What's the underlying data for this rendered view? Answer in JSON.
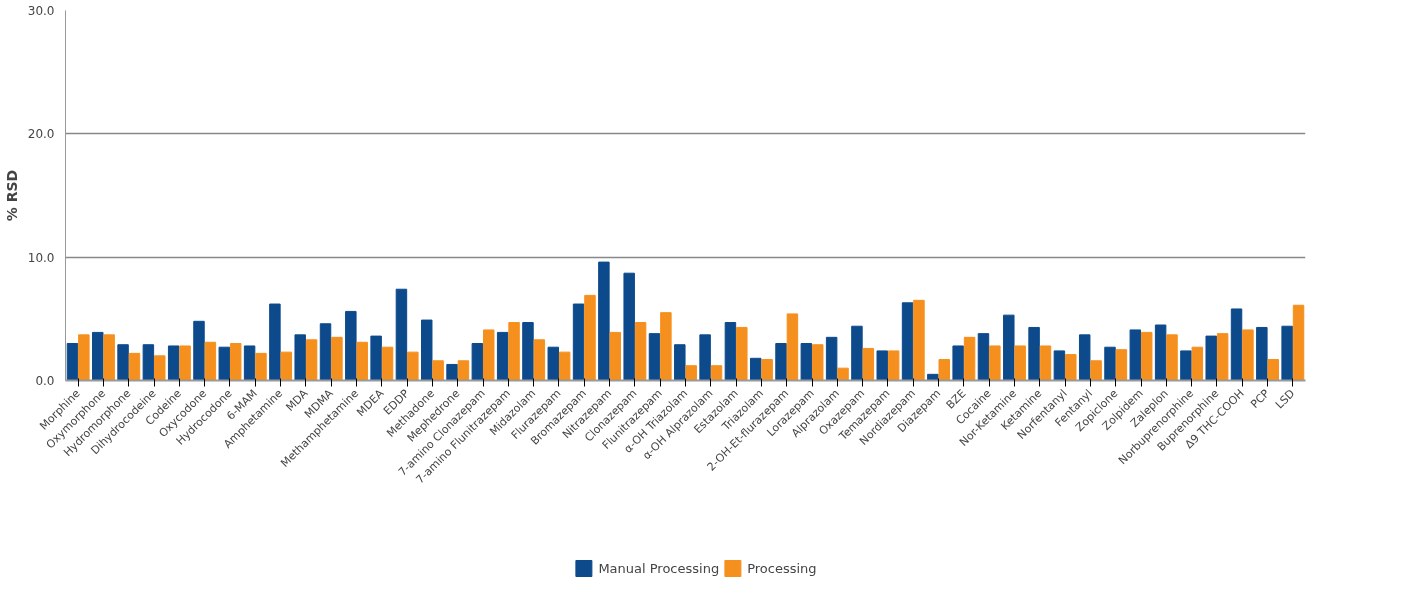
{
  "chart_data": {
    "type": "bar",
    "ylabel": "% RSD",
    "categories": [
      "Morphine",
      "Oxymorphone",
      "Hydromorphone",
      "Dihydrocodeine",
      "Codeine",
      "Oxycodone",
      "Hydrocodone",
      "6-MAM",
      "Amphetamine",
      "MDA",
      "MDMA",
      "Methamphetamine",
      "MDEA",
      "EDDP",
      "Methadone",
      "Mephedrone",
      "7-amino Clonazepam",
      "7-amino Flunitrazepam",
      "Midazolam",
      "Flurazepam",
      "Bromazepam",
      "Nitrazepam",
      "Clonazepam",
      "Flunitrazepam",
      "α-OH Triazolam",
      "α-OH Alprazolam",
      "Estazolam",
      "Triazolam",
      "2-OH-Et-flurazepam",
      "Lorazepam",
      "Alprazolam",
      "Oxazepam",
      "Temazepam",
      "Nordiazepam",
      "Diazepam",
      "BZE",
      "Cocaine",
      "Nor-Ketamine",
      "Ketamine",
      "Norfentanyl",
      "Fentanyl",
      "Zopiclone",
      "Zolpidem",
      "Zaleplon",
      "Norbuprenorphine",
      "Buprenorphine",
      "Δ9 THC-COOH",
      "PCP",
      "LSD"
    ],
    "series": [
      {
        "name": "Manual Processing",
        "color": "#0d4a8c",
        "values": [
          3.0,
          3.9,
          2.9,
          2.9,
          2.8,
          4.8,
          2.7,
          2.8,
          6.2,
          3.7,
          4.6,
          5.6,
          3.6,
          7.4,
          4.9,
          1.3,
          3.0,
          3.9,
          4.7,
          2.7,
          6.2,
          9.6,
          8.7,
          3.8,
          2.9,
          3.7,
          4.7,
          1.8,
          3.0,
          3.0,
          3.5,
          4.4,
          2.4,
          6.3,
          0.5,
          2.8,
          3.8,
          5.3,
          4.3,
          2.4,
          3.7,
          2.7,
          4.1,
          4.5,
          2.4,
          3.6,
          5.8,
          4.3,
          4.4
        ]
      },
      {
        "name": "Processing",
        "color": "#f5901e",
        "values": [
          3.7,
          3.7,
          2.2,
          2.0,
          2.8,
          3.1,
          3.0,
          2.2,
          2.3,
          3.3,
          3.5,
          3.1,
          2.7,
          2.3,
          1.6,
          1.6,
          4.1,
          4.7,
          3.3,
          2.3,
          6.9,
          3.9,
          4.7,
          5.5,
          1.2,
          1.2,
          4.3,
          1.7,
          5.4,
          2.9,
          1.0,
          2.6,
          2.4,
          6.5,
          1.7,
          3.5,
          2.8,
          2.8,
          2.8,
          2.1,
          1.6,
          2.5,
          3.9,
          3.7,
          2.7,
          3.8,
          4.1,
          1.7,
          6.1
        ]
      }
    ],
    "ylim": [
      0,
      30
    ],
    "yticks": [
      {
        "value": 0,
        "label": "0.0"
      },
      {
        "value": 10,
        "label": "10.0"
      },
      {
        "value": 20,
        "label": "20.0"
      },
      {
        "value": 30,
        "label": "30.0"
      }
    ],
    "grid": "y",
    "legend": "bottom"
  }
}
